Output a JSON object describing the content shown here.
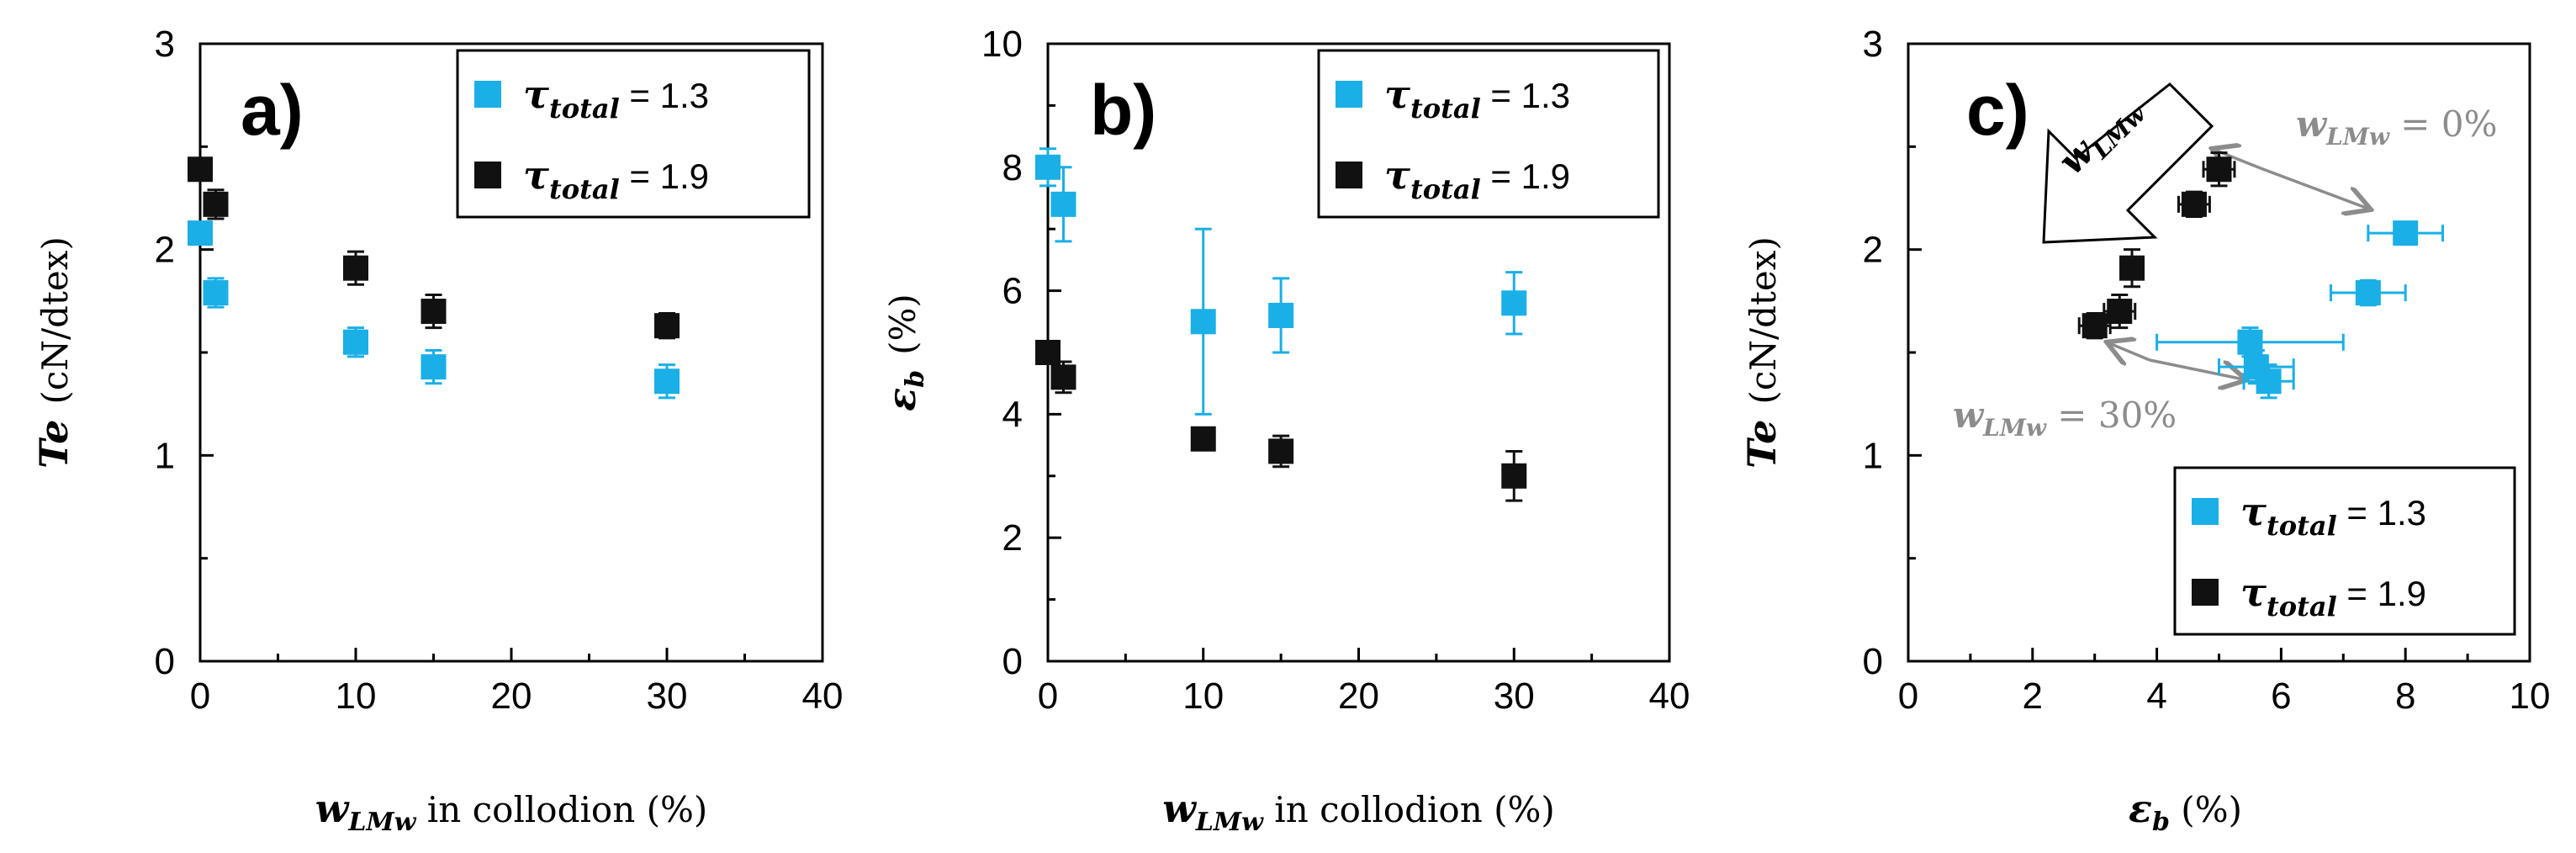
{
  "colors": {
    "series_1_3": "#1AAFE6",
    "series_1_9": "#111111",
    "axis": "#000000",
    "annotation": "#8C8C8C"
  },
  "panels": [
    {
      "id": "a",
      "panel_label": "a)",
      "ylabel_main": "Te",
      "ylabel_unit": "(cN/dtex)",
      "xlabel_main": "w",
      "xlabel_sub": "LMw",
      "xlabel_rest": " in collodion (%)",
      "xticks": [
        "0",
        "10",
        "20",
        "30",
        "40"
      ],
      "yticks": [
        "0",
        "1",
        "2",
        "3"
      ],
      "legend": [
        {
          "symbol": "τ",
          "sub": "total",
          "value": " = 1.3"
        },
        {
          "symbol": "τ",
          "sub": "total",
          "value": " = 1.9"
        }
      ]
    },
    {
      "id": "b",
      "panel_label": "b)",
      "ylabel_main": "ε",
      "ylabel_sub": "b",
      "ylabel_unit": "(%)",
      "xlabel_main": "w",
      "xlabel_sub": "LMw",
      "xlabel_rest": " in collodion (%)",
      "xticks": [
        "0",
        "10",
        "20",
        "30",
        "40"
      ],
      "yticks": [
        "0",
        "2",
        "4",
        "6",
        "8",
        "10"
      ],
      "legend": [
        {
          "symbol": "τ",
          "sub": "total",
          "value": " = 1.3"
        },
        {
          "symbol": "τ",
          "sub": "total",
          "value": " = 1.9"
        }
      ]
    },
    {
      "id": "c",
      "panel_label": "c)",
      "ylabel_main": "Te",
      "ylabel_unit": "(cN/dtex)",
      "xlabel_main": "ε",
      "xlabel_sub": "b",
      "xlabel_rest": " (%)",
      "xticks": [
        "0",
        "2",
        "4",
        "6",
        "8",
        "10"
      ],
      "yticks": [
        "0",
        "1",
        "2",
        "3"
      ],
      "legend": [
        {
          "symbol": "τ",
          "sub": "total",
          "value": " = 1.3"
        },
        {
          "symbol": "τ",
          "sub": "total",
          "value": " = 1.9"
        }
      ],
      "arrow_label_main": "w",
      "arrow_label_sub": "LMw",
      "annotation_top": {
        "main": "w",
        "sub": "LMw",
        "rest": " = 0%"
      },
      "annotation_bottom": {
        "main": "w",
        "sub": "LMw",
        "rest": " = 30%"
      }
    }
  ],
  "chart_data": [
    {
      "type": "scatter",
      "title": "a)",
      "xlabel": "wLMw in collodion (%)",
      "ylabel": "Te (cN/dtex)",
      "xlim": [
        0,
        40
      ],
      "ylim": [
        0,
        3
      ],
      "legend_position": "top-right",
      "series": [
        {
          "name": "τtotal = 1.3",
          "x": [
            0,
            1,
            10,
            15,
            30
          ],
          "y": [
            2.08,
            1.79,
            1.55,
            1.43,
            1.36
          ],
          "yerr": [
            0.05,
            0.07,
            0.07,
            0.08,
            0.08
          ]
        },
        {
          "name": "τtotal = 1.9",
          "x": [
            0,
            1,
            10,
            15,
            30
          ],
          "y": [
            2.39,
            2.22,
            1.91,
            1.7,
            1.63
          ],
          "yerr": [
            0.05,
            0.07,
            0.08,
            0.08,
            0.06
          ]
        }
      ]
    },
    {
      "type": "scatter",
      "title": "b)",
      "xlabel": "wLMw in collodion (%)",
      "ylabel": "εb (%)",
      "xlim": [
        0,
        40
      ],
      "ylim": [
        0,
        10
      ],
      "legend_position": "top-right",
      "series": [
        {
          "name": "τtotal = 1.3",
          "x": [
            0,
            1,
            10,
            15,
            30
          ],
          "y": [
            8.0,
            7.4,
            5.5,
            5.6,
            5.8
          ],
          "yerr": [
            0.3,
            0.6,
            1.5,
            0.6,
            0.5
          ]
        },
        {
          "name": "τtotal = 1.9",
          "x": [
            0,
            1,
            10,
            15,
            30
          ],
          "y": [
            5.0,
            4.6,
            3.6,
            3.4,
            3.0
          ],
          "yerr": [
            0.15,
            0.25,
            0.15,
            0.25,
            0.4
          ]
        }
      ]
    },
    {
      "type": "scatter",
      "title": "c)",
      "xlabel": "εb (%)",
      "ylabel": "Te (cN/dtex)",
      "xlim": [
        0,
        10
      ],
      "ylim": [
        0,
        3
      ],
      "legend_position": "bottom-right",
      "series": [
        {
          "name": "τtotal = 1.3",
          "x": [
            8.0,
            7.4,
            5.5,
            5.6,
            5.8
          ],
          "y": [
            2.08,
            1.79,
            1.55,
            1.43,
            1.36
          ],
          "xerr": [
            0.6,
            0.6,
            1.5,
            0.6,
            0.4
          ],
          "yerr": [
            0.05,
            0.06,
            0.07,
            0.08,
            0.08
          ]
        },
        {
          "name": "τtotal = 1.9",
          "x": [
            5.0,
            4.6,
            3.6,
            3.4,
            3.0
          ],
          "y": [
            2.39,
            2.22,
            1.91,
            1.7,
            1.63
          ],
          "xerr": [
            0.25,
            0.25,
            0.1,
            0.25,
            0.25
          ],
          "yerr": [
            0.08,
            0.06,
            0.09,
            0.08,
            0.06
          ]
        }
      ]
    }
  ]
}
